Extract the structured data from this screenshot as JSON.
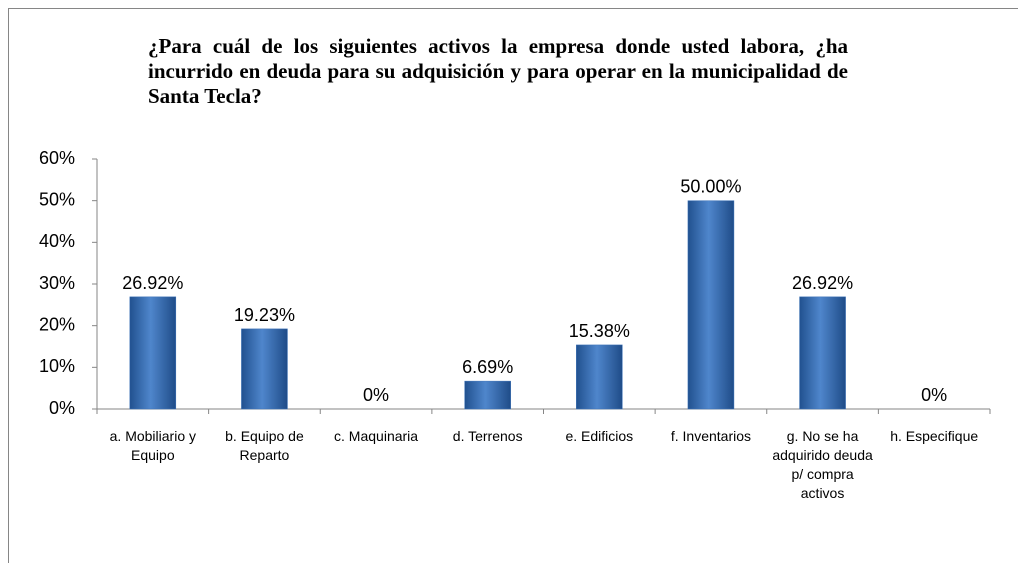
{
  "chart_data": {
    "type": "bar",
    "title": "¿Para cuál de los siguientes activos la empresa donde usted labora, ¿ha incurrido en deuda para su adquisición y para operar en la municipalidad de Santa Tecla?",
    "categories": [
      "a. Mobiliario y Equipo",
      "b. Equipo de Reparto",
      "c. Maquinaria",
      "d. Terrenos",
      "e. Edificios",
      "f. Inventarios",
      "g. No se ha adquirido deuda p/ compra activos",
      "h. Especifique"
    ],
    "values": [
      26.92,
      19.23,
      0,
      6.69,
      15.38,
      50,
      26.92,
      0
    ],
    "value_labels": [
      "26.92%",
      "19.23%",
      "0%",
      "6.69%",
      "15.38%",
      "50.00%",
      "26.92%",
      "0%"
    ],
    "color": "#3c72b8",
    "ylim": [
      0,
      60
    ],
    "yticks": [
      {
        "value": 0,
        "label": "0%"
      },
      {
        "value": 10,
        "label": "10%"
      },
      {
        "value": 20,
        "label": "20%"
      },
      {
        "value": 30,
        "label": "30%"
      },
      {
        "value": 40,
        "label": "40%"
      },
      {
        "value": 50,
        "label": "50%"
      },
      {
        "value": 60,
        "label": "60%"
      }
    ],
    "grid": false
  }
}
